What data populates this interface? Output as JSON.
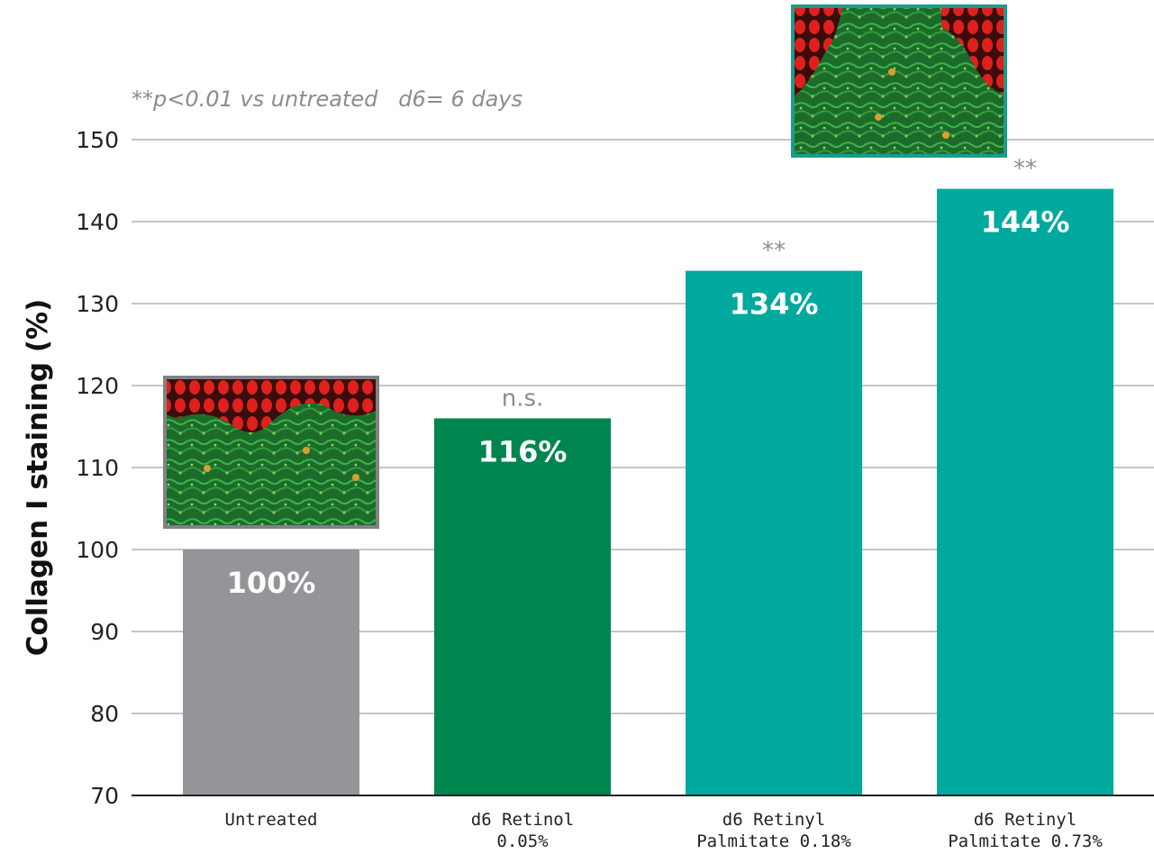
{
  "chart_data": {
    "type": "bar",
    "title": "",
    "xlabel": "",
    "ylabel": "Collagen I staining (%)",
    "ylim": [
      70,
      150
    ],
    "yticks": [
      70,
      80,
      90,
      100,
      110,
      120,
      130,
      140,
      150
    ],
    "baseline": 100,
    "grid": true,
    "note": "**p<0.01 vs untreated   d6= 6 days",
    "categories": [
      [
        "Untreated"
      ],
      [
        "d6 Retinol",
        "0.05%"
      ],
      [
        "d6 Retinyl",
        "Palmitate 0.18%"
      ],
      [
        "d6 Retinyl",
        "Palmitate 0.73%"
      ]
    ],
    "values": [
      100,
      116,
      134,
      144
    ],
    "data_labels": [
      "100%",
      "116%",
      "134%",
      "144%"
    ],
    "significance": [
      "",
      "n.s.",
      "**",
      "**"
    ],
    "colors": [
      "#939598",
      "#00854f",
      "#00a99d",
      "#00a99d"
    ],
    "micrograph_frame_colors": [
      "#808285",
      "#1a9c8e"
    ]
  }
}
